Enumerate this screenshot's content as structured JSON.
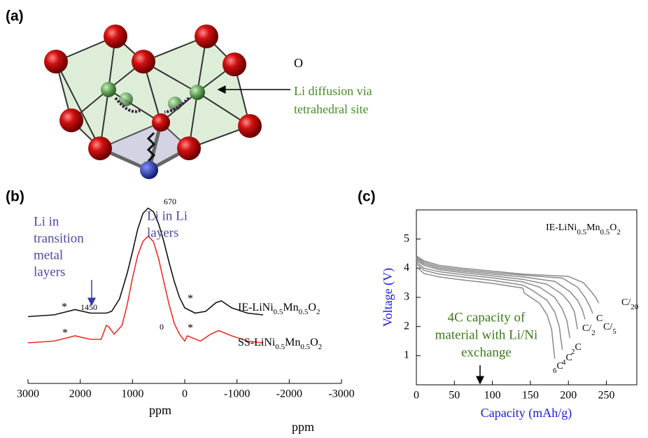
{
  "diagram": {
    "panel_label": "(a)",
    "texts": [
      "O",
      "Li diffusion via",
      "tetrahedral site"
    ]
  },
  "chart_data": [
    {
      "type": "line",
      "panel_label": "(b)",
      "xlabel": "ppm",
      "xlim": [
        3000,
        -3000
      ],
      "xticks": [
        3000,
        2000,
        1000,
        0,
        -1000,
        -2000,
        -3000
      ],
      "ylim": [
        0,
        100
      ],
      "series": [
        {
          "name": "IE-LiNi0.5Mn0.5O2",
          "color": "#111111",
          "x": [
            3000,
            2500,
            2100,
            1800,
            1500,
            1400,
            1250,
            1100,
            1000,
            900,
            800,
            700,
            600,
            500,
            400,
            300,
            200,
            100,
            0,
            -200,
            -400,
            -600,
            -700,
            -900,
            -1200,
            -1500
          ],
          "values": [
            35,
            36,
            39,
            37,
            37,
            38,
            45,
            60,
            72,
            85,
            94,
            97,
            95,
            88,
            78,
            66,
            55,
            46,
            40,
            37,
            38,
            43,
            44,
            40,
            37,
            36
          ]
        },
        {
          "name": "SS-LiNi0.5Mn0.5O2",
          "color": "#e8302a",
          "x": [
            3000,
            2500,
            2100,
            1800,
            1600,
            1500,
            1450,
            1350,
            1200,
            1100,
            1000,
            900,
            800,
            700,
            600,
            500,
            400,
            300,
            200,
            100,
            0,
            -50,
            -300,
            -500,
            -650,
            -900,
            -1200,
            -1500
          ],
          "values": [
            20,
            21,
            24,
            22,
            22,
            30,
            29,
            25,
            30,
            42,
            57,
            70,
            78,
            81,
            78,
            68,
            55,
            42,
            31,
            25,
            21,
            24,
            21,
            25,
            27,
            24,
            21,
            20
          ]
        }
      ],
      "annotations": [
        "670",
        "1450",
        "0",
        "*",
        "*",
        "*",
        "*"
      ],
      "notes": [
        [
          "Li in",
          "transition",
          "metal",
          "layers"
        ],
        [
          "Li in Li",
          "layers"
        ]
      ]
    },
    {
      "type": "line",
      "panel_label": "(c)",
      "xlabel": "Capacity (mAh/g)",
      "ylabel": "Voltage (V)",
      "xlim": [
        0,
        290
      ],
      "xticks": [
        0,
        50,
        100,
        150,
        200,
        250
      ],
      "ylim": [
        0,
        6
      ],
      "yticks": [
        1,
        2,
        3,
        4,
        5
      ],
      "label": "IE-LiNi0.5Mn0.5O2",
      "note": [
        "4C capacity of",
        "material with Li/Ni",
        "exchange"
      ],
      "series": [
        {
          "name": "C/20",
          "color": "#8a8a8a",
          "x": [
            0,
            10,
            30,
            60,
            100,
            140,
            200,
            220,
            230,
            236,
            240
          ],
          "values": [
            4.42,
            4.25,
            4.1,
            4.0,
            3.9,
            3.8,
            3.72,
            3.5,
            3.2,
            3.0,
            2.8
          ]
        },
        {
          "name": "C/5",
          "color": "#8a8a8a",
          "x": [
            0,
            10,
            30,
            60,
            100,
            140,
            192,
            212,
            222,
            228,
            232
          ],
          "values": [
            4.38,
            4.2,
            4.05,
            3.95,
            3.85,
            3.76,
            3.66,
            3.35,
            3.0,
            2.7,
            2.45
          ]
        },
        {
          "name": "C/2",
          "color": "#8a8a8a",
          "x": [
            0,
            10,
            30,
            60,
            100,
            140,
            182,
            202,
            212,
            218,
            222
          ],
          "values": [
            4.33,
            4.15,
            4.0,
            3.9,
            3.8,
            3.7,
            3.55,
            3.2,
            2.9,
            2.6,
            2.25
          ]
        },
        {
          "name": "C",
          "color": "#8a8a8a",
          "x": [
            0,
            10,
            30,
            60,
            100,
            140,
            172,
            192,
            202,
            208,
            212
          ],
          "values": [
            4.28,
            4.1,
            3.95,
            3.85,
            3.74,
            3.62,
            3.45,
            3.1,
            2.8,
            2.5,
            1.9
          ]
        },
        {
          "name": "2C",
          "color": "#8a8a8a",
          "x": [
            0,
            10,
            30,
            60,
            100,
            140,
            162,
            182,
            192,
            198,
            202
          ],
          "values": [
            4.22,
            4.0,
            3.88,
            3.78,
            3.67,
            3.53,
            3.35,
            3.0,
            2.6,
            2.2,
            1.6
          ]
        },
        {
          "name": "4C",
          "color": "#8a8a8a",
          "x": [
            0,
            10,
            30,
            60,
            100,
            140,
            152,
            172,
            182,
            188,
            192
          ],
          "values": [
            4.15,
            3.93,
            3.8,
            3.7,
            3.58,
            3.42,
            3.25,
            2.9,
            2.5,
            2.0,
            1.2
          ]
        },
        {
          "name": "6C",
          "color": "#8a8a8a",
          "x": [
            0,
            10,
            30,
            60,
            100,
            140,
            142,
            162,
            172,
            178,
            182
          ],
          "values": [
            4.05,
            3.82,
            3.7,
            3.6,
            3.48,
            3.32,
            3.15,
            2.8,
            2.4,
            1.9,
            0.9
          ]
        }
      ]
    }
  ],
  "footer": "ppm"
}
